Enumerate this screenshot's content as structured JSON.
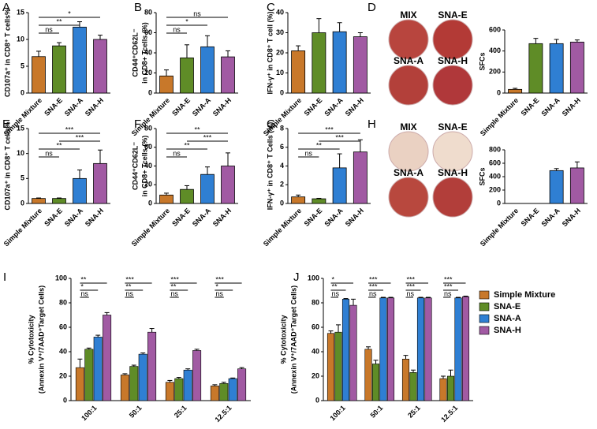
{
  "chart_data": [
    {
      "panel": "A",
      "type": "bar",
      "ylabel": [
        "CD107a⁺ in CD8⁺ T cells%"
      ],
      "categories": [
        "Simple Mixture",
        "SNA-E",
        "SNA-A",
        "SNA-H"
      ],
      "values": [
        6.8,
        8.8,
        12.3,
        10.0
      ],
      "errors": [
        1.0,
        0.6,
        1.0,
        0.8
      ],
      "colors": [
        "#c8782a",
        "#5f8c27",
        "#2f7fd3",
        "#a15aa3"
      ],
      "ylim": [
        0,
        15
      ],
      "yticks": [
        0,
        5,
        10,
        15
      ],
      "significance": [
        {
          "label": "*",
          "between": [
            0,
            3
          ]
        },
        {
          "label": "**",
          "between": [
            0,
            2
          ]
        },
        {
          "label": "ns",
          "between": [
            0,
            1
          ]
        }
      ]
    },
    {
      "panel": "B",
      "type": "bar",
      "ylabel": [
        "CD44⁺CD62L⁻",
        "in CD8+ Tcells (%)"
      ],
      "categories": [
        "Simple Mixture",
        "SNA-E",
        "SNA-A",
        "SNA-H"
      ],
      "values": [
        17,
        35,
        46,
        36
      ],
      "errors": [
        6,
        13,
        11,
        6
      ],
      "colors": [
        "#c8782a",
        "#5f8c27",
        "#2f7fd3",
        "#a15aa3"
      ],
      "ylim": [
        0,
        80
      ],
      "yticks": [
        0,
        20,
        40,
        60,
        80
      ],
      "significance": [
        {
          "label": "ns",
          "between": [
            0,
            3
          ]
        },
        {
          "label": "*",
          "between": [
            0,
            2
          ]
        },
        {
          "label": "ns",
          "between": [
            0,
            1
          ]
        }
      ]
    },
    {
      "panel": "C",
      "type": "bar",
      "ylabel": [
        "IFN-γ⁺ in CD8⁺ T cell (%)"
      ],
      "categories": [
        "Simple Mixture",
        "SNA-E",
        "SNA-A",
        "SNA-H"
      ],
      "values": [
        21,
        30,
        30.5,
        28
      ],
      "errors": [
        2.5,
        7,
        4.5,
        2
      ],
      "colors": [
        "#c8782a",
        "#5f8c27",
        "#2f7fd3",
        "#a15aa3"
      ],
      "ylim": [
        0,
        40
      ],
      "yticks": [
        0,
        10,
        20,
        30,
        40
      ],
      "significance": []
    },
    {
      "panel": "D",
      "type": "bar",
      "ylabel": [
        "SFCs"
      ],
      "plates": [
        "MIX",
        "SNA-E",
        "SNA-A",
        "SNA-H"
      ],
      "plate_colors": [
        "#b8453e",
        "#b33a36",
        "#b3403a",
        "#b0383a"
      ],
      "categories": [
        "Simple Mixture",
        "SNA-E",
        "SNA-A",
        "SNA-H"
      ],
      "values": [
        35,
        470,
        470,
        485
      ],
      "errors": [
        10,
        50,
        40,
        20
      ],
      "colors": [
        "#c8782a",
        "#5f8c27",
        "#2f7fd3",
        "#a15aa3"
      ],
      "ylim": [
        0,
        600
      ],
      "yticks": [
        0,
        200,
        400,
        600
      ],
      "significance": []
    },
    {
      "panel": "E",
      "type": "bar",
      "ylabel": [
        "CD107a⁺ in CD8⁺ T cells%"
      ],
      "categories": [
        "Simple Mixture",
        "SNA-E",
        "SNA-A",
        "SNA-H"
      ],
      "values": [
        1,
        1,
        5,
        8
      ],
      "errors": [
        0.1,
        0.1,
        1.7,
        2.7
      ],
      "colors": [
        "#c8782a",
        "#5f8c27",
        "#2f7fd3",
        "#a15aa3"
      ],
      "ylim": [
        0,
        15
      ],
      "yticks": [
        0,
        5,
        10,
        15
      ],
      "significance": [
        {
          "label": "***",
          "between": [
            0,
            3
          ]
        },
        {
          "label": "***",
          "between": [
            1,
            3
          ]
        },
        {
          "label": "**",
          "between": [
            0,
            2
          ]
        },
        {
          "label": "ns",
          "between": [
            0,
            1
          ]
        }
      ]
    },
    {
      "panel": "F",
      "type": "bar",
      "ylabel": [
        "CD44⁺CD62L⁻",
        "in CD8+ Tcells (%)"
      ],
      "categories": [
        "Simple Mixture",
        "SNA-E",
        "SNA-A",
        "SNA-H"
      ],
      "values": [
        9,
        15,
        31,
        40
      ],
      "errors": [
        2,
        4,
        8,
        14
      ],
      "colors": [
        "#c8782a",
        "#5f8c27",
        "#2f7fd3",
        "#a15aa3"
      ],
      "ylim": [
        0,
        80
      ],
      "yticks": [
        0,
        20,
        40,
        60,
        80
      ],
      "significance": [
        {
          "label": "**",
          "between": [
            0,
            3
          ]
        },
        {
          "label": "***",
          "between": [
            1,
            3
          ]
        },
        {
          "label": "**",
          "between": [
            0,
            2
          ]
        },
        {
          "label": "ns",
          "between": [
            0,
            1
          ]
        }
      ]
    },
    {
      "panel": "G",
      "type": "bar",
      "ylabel": [
        "IFN-γ⁺ in CD8⁺ T Cells (%)"
      ],
      "categories": [
        "Simple Mixture",
        "SNA-E",
        "SNA-A",
        "SNA-H"
      ],
      "values": [
        0.7,
        0.5,
        3.8,
        5.5
      ],
      "errors": [
        0.2,
        0.05,
        1.5,
        1.3
      ],
      "colors": [
        "#c8782a",
        "#5f8c27",
        "#2f7fd3",
        "#a15aa3"
      ],
      "ylim": [
        0,
        8
      ],
      "yticks": [
        0,
        2,
        4,
        6,
        8
      ],
      "significance": [
        {
          "label": "***",
          "between": [
            0,
            3
          ]
        },
        {
          "label": "***",
          "between": [
            1,
            3
          ]
        },
        {
          "label": "**",
          "between": [
            0,
            2
          ]
        },
        {
          "label": "ns",
          "between": [
            0,
            1
          ]
        }
      ]
    },
    {
      "panel": "H",
      "type": "bar",
      "ylabel": [
        "SFCs"
      ],
      "plates": [
        "MIX",
        "SNA-E",
        "SNA-A",
        "SNA-H"
      ],
      "plate_colors": [
        "#ead1c2",
        "#efdccd",
        "#b8483e",
        "#b23e3a"
      ],
      "categories": [
        "Simple Mixture",
        "SNA-E",
        "SNA-A",
        "SNA-H"
      ],
      "values": [
        0,
        0,
        490,
        530
      ],
      "errors": [
        0,
        0,
        30,
        90
      ],
      "colors": [
        "#c8782a",
        "#5f8c27",
        "#2f7fd3",
        "#a15aa3"
      ],
      "ylim": [
        0,
        800
      ],
      "yticks": [
        0,
        200,
        400,
        600,
        800
      ],
      "significance": []
    },
    {
      "panel": "I",
      "type": "grouped_bar",
      "ylabel": [
        "% Cytotoxicity",
        "(Annexin V⁺/7AAD⁺Target Cells)"
      ],
      "categories": [
        "100:1",
        "50:1",
        "25:1",
        "12.5:1"
      ],
      "series": [
        {
          "name": "Simple Mixture",
          "color": "#c8782a",
          "values": [
            27,
            21,
            15,
            12
          ],
          "errors": [
            7,
            1,
            1.5,
            1
          ]
        },
        {
          "name": "SNA-E",
          "color": "#5f8c27",
          "values": [
            42,
            28,
            18,
            14
          ],
          "errors": [
            1,
            1,
            1,
            1
          ]
        },
        {
          "name": "SNA-A",
          "color": "#2f7fd3",
          "values": [
            52,
            38,
            25,
            18
          ],
          "errors": [
            1.5,
            1,
            1,
            0.5
          ]
        },
        {
          "name": "SNA-H",
          "color": "#a15aa3",
          "values": [
            70,
            56,
            41,
            26
          ],
          "errors": [
            2,
            3,
            1,
            1
          ]
        }
      ],
      "ylim": [
        0,
        100
      ],
      "yticks": [
        0,
        20,
        40,
        60,
        80,
        100
      ],
      "significance": [
        [
          "**",
          "*",
          "ns"
        ],
        [
          "***",
          "**",
          "ns"
        ],
        [
          "***",
          "**",
          "ns"
        ],
        [
          "***",
          "*",
          "ns"
        ]
      ]
    },
    {
      "panel": "J",
      "type": "grouped_bar",
      "ylabel": [
        "% Cytotoxicity",
        "(Annexin V⁺/7AAD⁺Target Cells)"
      ],
      "categories": [
        "100:1",
        "50:1",
        "25:1",
        "12.5:1"
      ],
      "series": [
        {
          "name": "Simple Mixture",
          "color": "#c8782a",
          "values": [
            55,
            42,
            34,
            18
          ],
          "errors": [
            2,
            2,
            3,
            2
          ]
        },
        {
          "name": "SNA-E",
          "color": "#5f8c27",
          "values": [
            56,
            30,
            23,
            20
          ],
          "errors": [
            6,
            3,
            2,
            5
          ]
        },
        {
          "name": "SNA-A",
          "color": "#2f7fd3",
          "values": [
            83,
            84,
            84,
            84
          ],
          "errors": [
            0.5,
            0.5,
            0.5,
            0.5
          ]
        },
        {
          "name": "SNA-H",
          "color": "#a15aa3",
          "values": [
            78,
            84,
            84,
            85
          ],
          "errors": [
            5,
            0.5,
            0.5,
            0.5
          ]
        }
      ],
      "ylim": [
        0,
        100
      ],
      "yticks": [
        0,
        20,
        40,
        60,
        80,
        100
      ],
      "significance": [
        [
          "*",
          "**",
          "ns"
        ],
        [
          "***",
          "***",
          "ns"
        ],
        [
          "***",
          "***",
          "ns"
        ],
        [
          "***",
          "***",
          "ns"
        ]
      ],
      "legend": true
    }
  ]
}
